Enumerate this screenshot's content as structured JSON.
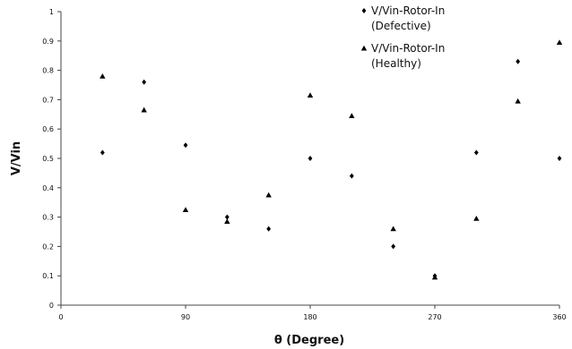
{
  "chart_data": {
    "type": "scatter",
    "title": "",
    "xlabel": "θ (Degree)",
    "ylabel": "V/Vin",
    "xlim": [
      0,
      360
    ],
    "ylim": [
      0,
      1
    ],
    "xticks": [
      0,
      90,
      180,
      270,
      360
    ],
    "yticks": [
      0,
      0.1,
      0.2,
      0.3,
      0.4,
      0.5,
      0.6,
      0.7,
      0.8,
      0.9,
      1
    ],
    "ytick_labels": [
      "0",
      "0.1",
      "0.2",
      "0.3",
      "0.4",
      "0.5",
      "0.6",
      "0.7",
      "0.8",
      "0.9",
      "1"
    ],
    "grid": false,
    "legend_position": "top-right",
    "series": [
      {
        "name": "V/Vin-Rotor-In",
        "name_line2": "(Defective)",
        "marker": "diamond",
        "color": "#000000",
        "x": [
          30,
          60,
          90,
          120,
          150,
          180,
          210,
          240,
          270,
          300,
          330,
          360
        ],
        "y": [
          0.52,
          0.76,
          0.545,
          0.3,
          0.26,
          0.5,
          0.44,
          0.2,
          0.1,
          0.52,
          0.83,
          0.5
        ]
      },
      {
        "name": "V/Vin-Rotor-In",
        "name_line2": "(Healthy)",
        "marker": "triangle",
        "color": "#000000",
        "x": [
          30,
          60,
          90,
          120,
          150,
          180,
          210,
          240,
          270,
          300,
          330,
          360
        ],
        "y": [
          0.78,
          0.665,
          0.325,
          0.285,
          0.375,
          0.715,
          0.645,
          0.26,
          0.095,
          0.295,
          0.695,
          0.895
        ]
      }
    ]
  }
}
